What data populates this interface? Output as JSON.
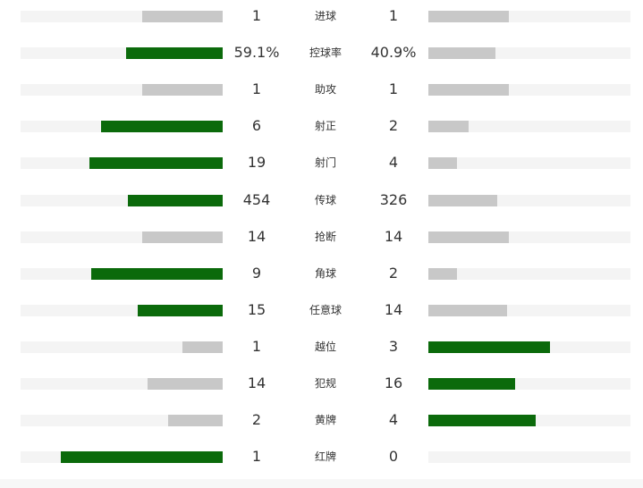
{
  "colors": {
    "leading": "#0b6a0b",
    "trailing": "#c8c8c8",
    "track": "#f4f4f4",
    "text": "#333333"
  },
  "stats": [
    {
      "label": "进球",
      "home": "1",
      "away": "1",
      "home_share": 0.4,
      "away_share": 0.4,
      "home_leads": false,
      "away_leads": false
    },
    {
      "label": "控球率",
      "home": "59.1%",
      "away": "40.9%",
      "home_share": 0.48,
      "away_share": 0.33,
      "home_leads": true,
      "away_leads": false
    },
    {
      "label": "助攻",
      "home": "1",
      "away": "1",
      "home_share": 0.4,
      "away_share": 0.4,
      "home_leads": false,
      "away_leads": false
    },
    {
      "label": "射正",
      "home": "6",
      "away": "2",
      "home_share": 0.6,
      "away_share": 0.2,
      "home_leads": true,
      "away_leads": false
    },
    {
      "label": "射门",
      "home": "19",
      "away": "4",
      "home_share": 0.66,
      "away_share": 0.14,
      "home_leads": true,
      "away_leads": false
    },
    {
      "label": "传球",
      "home": "454",
      "away": "326",
      "home_share": 0.47,
      "away_share": 0.34,
      "home_leads": true,
      "away_leads": false
    },
    {
      "label": "抢断",
      "home": "14",
      "away": "14",
      "home_share": 0.4,
      "away_share": 0.4,
      "home_leads": false,
      "away_leads": false
    },
    {
      "label": "角球",
      "home": "9",
      "away": "2",
      "home_share": 0.65,
      "away_share": 0.14,
      "home_leads": true,
      "away_leads": false
    },
    {
      "label": "任意球",
      "home": "15",
      "away": "14",
      "home_share": 0.42,
      "away_share": 0.39,
      "home_leads": true,
      "away_leads": false
    },
    {
      "label": "越位",
      "home": "1",
      "away": "3",
      "home_share": 0.2,
      "away_share": 0.6,
      "home_leads": false,
      "away_leads": true
    },
    {
      "label": "犯规",
      "home": "14",
      "away": "16",
      "home_share": 0.37,
      "away_share": 0.43,
      "home_leads": false,
      "away_leads": true
    },
    {
      "label": "黄牌",
      "home": "2",
      "away": "4",
      "home_share": 0.27,
      "away_share": 0.53,
      "home_leads": false,
      "away_leads": true
    },
    {
      "label": "红牌",
      "home": "1",
      "away": "0",
      "home_share": 0.8,
      "away_share": 0.0,
      "home_leads": true,
      "away_leads": false
    }
  ]
}
